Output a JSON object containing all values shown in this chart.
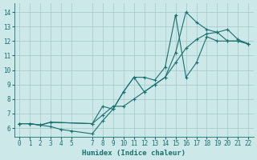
{
  "xlabel": "Humidex (Indice chaleur)",
  "bg_color": "#cce8e8",
  "grid_color": "#aacccc",
  "line_color": "#1a7070",
  "xlim": [
    -0.5,
    22.5
  ],
  "ylim": [
    5.4,
    14.6
  ],
  "xticks": [
    0,
    1,
    2,
    3,
    4,
    5,
    7,
    8,
    9,
    10,
    11,
    12,
    13,
    14,
    15,
    16,
    17,
    18,
    19,
    20,
    21,
    22
  ],
  "yticks": [
    6,
    7,
    8,
    9,
    10,
    11,
    12,
    13,
    14
  ],
  "line1": {
    "x": [
      0,
      1,
      2,
      3,
      7,
      8,
      9,
      10,
      11,
      12,
      13,
      14,
      15,
      16,
      17,
      18,
      19,
      20,
      21,
      22
    ],
    "y": [
      6.3,
      6.3,
      6.2,
      6.4,
      6.3,
      7.5,
      7.3,
      8.5,
      9.5,
      8.5,
      9.0,
      9.5,
      11.2,
      14.0,
      13.3,
      12.8,
      12.6,
      12.0,
      12.0,
      11.8
    ]
  },
  "line2": {
    "x": [
      0,
      1,
      2,
      3,
      7,
      8,
      9,
      10,
      11,
      12,
      13,
      14,
      15,
      16,
      17,
      18,
      19,
      20,
      21,
      22
    ],
    "y": [
      6.3,
      6.3,
      6.2,
      6.4,
      6.3,
      6.9,
      7.5,
      7.5,
      8.0,
      8.5,
      9.0,
      9.5,
      10.5,
      11.5,
      12.1,
      12.5,
      12.6,
      12.8,
      12.1,
      11.8
    ]
  },
  "line3": {
    "x": [
      0,
      1,
      2,
      3,
      4,
      5,
      7,
      8,
      9,
      10,
      11,
      12,
      13,
      14,
      15,
      16,
      17,
      18,
      19,
      20,
      21,
      22
    ],
    "y": [
      6.3,
      6.3,
      6.2,
      6.1,
      5.9,
      5.8,
      5.6,
      6.5,
      7.3,
      8.5,
      9.5,
      9.5,
      9.3,
      10.2,
      13.8,
      9.5,
      10.5,
      12.3,
      12.0,
      12.0,
      12.0,
      11.8
    ]
  }
}
